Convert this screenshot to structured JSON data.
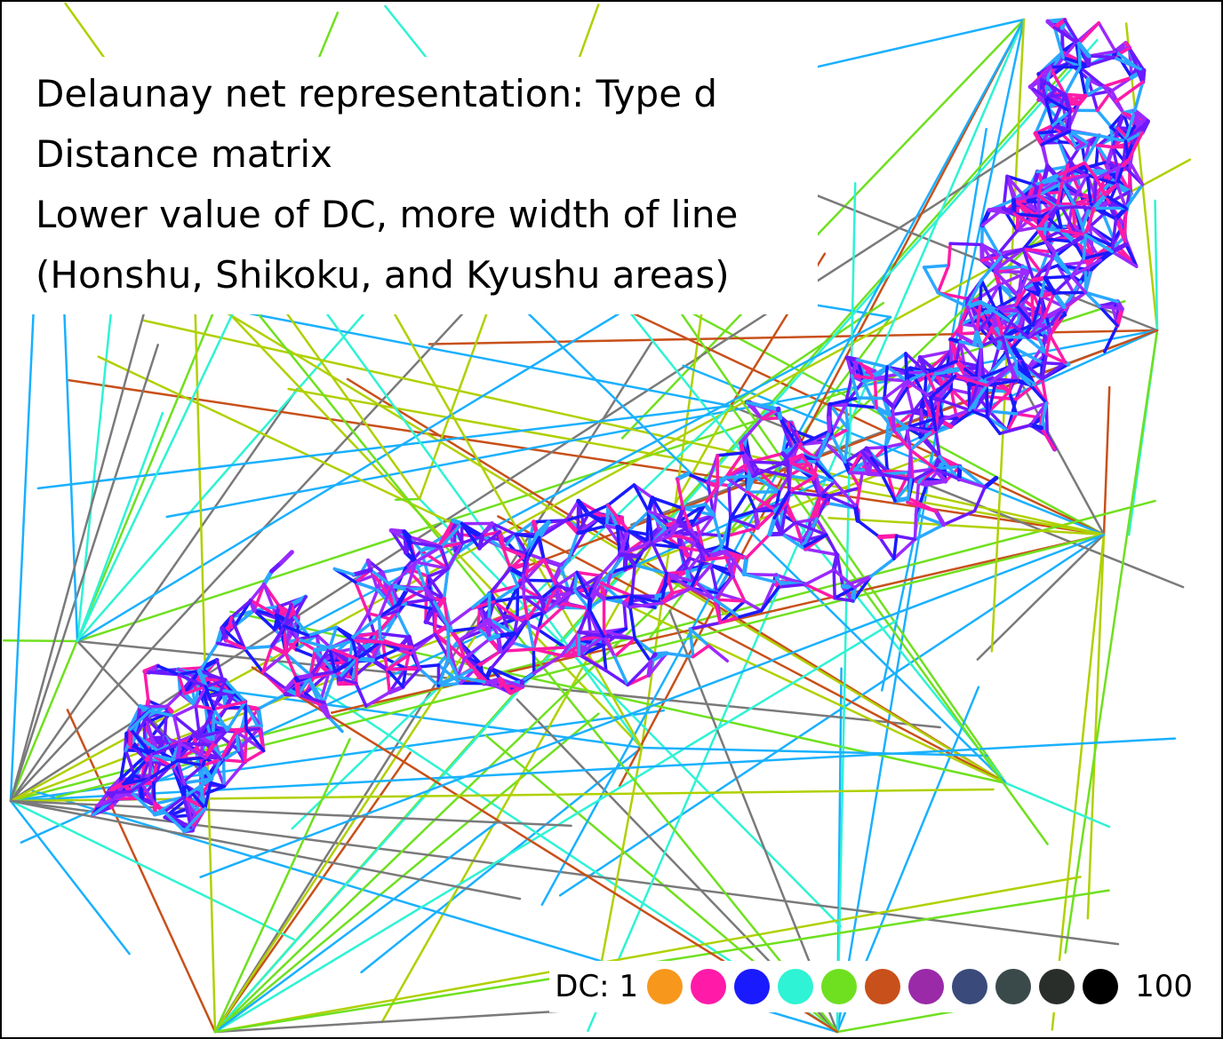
{
  "title_lines": [
    "Delaunay net representation: Type d",
    "Distance matrix",
    "Lower value of DC, more width of line",
    "(Honshu, Shikoku, and Kyushu areas)"
  ],
  "legend": {
    "label_start": "DC: 1",
    "label_end": "100",
    "swatches": [
      {
        "name": "orange",
        "color": "#f7981d"
      },
      {
        "name": "magenta",
        "color": "#ff1aa8"
      },
      {
        "name": "blue",
        "color": "#1a1aff"
      },
      {
        "name": "aqua",
        "color": "#2ef3d4"
      },
      {
        "name": "green",
        "color": "#6fe01f"
      },
      {
        "name": "rust",
        "color": "#c8501a"
      },
      {
        "name": "purple",
        "color": "#9a2aa8"
      },
      {
        "name": "slate-blue",
        "color": "#3a4a7a"
      },
      {
        "name": "dark-slate",
        "color": "#3a4a4a"
      },
      {
        "name": "charcoal",
        "color": "#2a2e2a"
      },
      {
        "name": "black",
        "color": "#000000"
      }
    ]
  },
  "colors": {
    "dense_core": [
      "#1a1aff",
      "#6a1aff",
      "#ff1aa8",
      "#2aa8ff",
      "#9a2aff"
    ],
    "sparse_edges": [
      "#2ef3d4",
      "#6fe01f",
      "#c8501a",
      "#1ab0ff",
      "#7a7a7a",
      "#b0d000"
    ]
  }
}
